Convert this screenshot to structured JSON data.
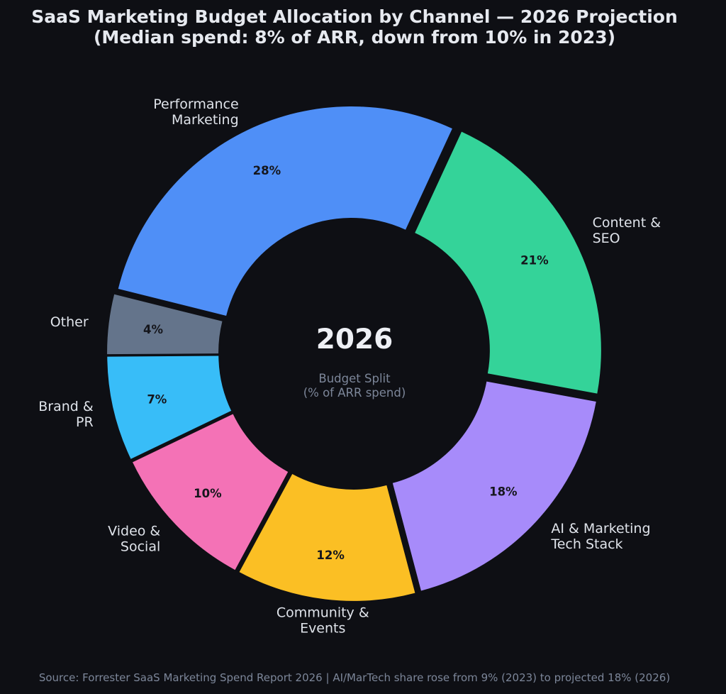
{
  "chart_data": {
    "type": "pie",
    "title": [
      "SaaS Marketing Budget Allocation by Channel — 2026 Projection",
      "(Median spend: 8% of ARR, down from 10% in 2023)"
    ],
    "center_label": "2026",
    "center_sublabel": [
      "Budget Split",
      "(% of ARR spend)"
    ],
    "source": "Source: Forrester SaaS Marketing Spend Report 2026  |  AI/MarTech share rose from 9% (2023) to projected 18% (2026)",
    "slices": [
      {
        "label": [
          "Performance",
          "Marketing"
        ],
        "value": 28,
        "display": "28%",
        "color": "#4f8ff7"
      },
      {
        "label": [
          "Content &",
          "SEO"
        ],
        "value": 21,
        "display": "21%",
        "color": "#34d399"
      },
      {
        "label": [
          "AI & Marketing",
          "Tech Stack"
        ],
        "value": 18,
        "display": "18%",
        "color": "#a78bfa"
      },
      {
        "label": [
          "Community &",
          "Events"
        ],
        "value": 12,
        "display": "12%",
        "color": "#fbbf24"
      },
      {
        "label": [
          "Video &",
          "Social"
        ],
        "value": 10,
        "display": "10%",
        "color": "#f472b6"
      },
      {
        "label": [
          "Brand &",
          "PR"
        ],
        "value": 7,
        "display": "7%",
        "color": "#38bdf8"
      },
      {
        "label": [
          "Other"
        ],
        "value": 4,
        "display": "4%",
        "color": "#64748b"
      }
    ]
  }
}
